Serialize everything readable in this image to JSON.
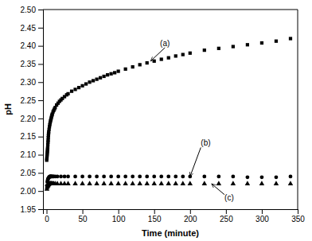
{
  "chart_data": {
    "type": "scatter",
    "xlabel": "Time (minute)",
    "ylabel": "pH",
    "xlim": [
      -5,
      350
    ],
    "ylim": [
      1.95,
      2.5
    ],
    "xticks": [
      0,
      50,
      100,
      150,
      200,
      250,
      300,
      350
    ],
    "yticks": [
      1.95,
      {
        "value": 2.0,
        "label": "2.00"
      },
      2.05,
      {
        "value": 2.1,
        "label": "2.10"
      },
      2.15,
      {
        "value": 2.2,
        "label": "2.20"
      },
      2.25,
      {
        "value": 2.3,
        "label": "2.30"
      },
      2.35,
      {
        "value": 2.4,
        "label": "2.40"
      },
      2.45,
      {
        "value": 2.5,
        "label": "2.50"
      }
    ],
    "series": [
      {
        "marker": "square",
        "color": "#000000",
        "x": [
          0.2,
          0.4,
          0.6,
          0.8,
          1.0,
          1.2,
          1.4,
          1.6,
          1.8,
          2.0,
          2.2,
          2.4,
          2.6,
          2.8,
          3.0,
          3.5,
          4.0,
          4.5,
          5.0,
          5.5,
          6.0,
          6.5,
          7.0,
          7.5,
          8.0,
          9.0,
          10.0,
          11.0,
          12.0,
          14.0,
          16.0,
          18.0,
          20.0,
          22.0,
          25.0,
          28.0,
          30.0,
          35.0,
          40.0,
          45.0,
          50.0,
          55.0,
          60.0,
          65.0,
          70.0,
          75.0,
          80.0,
          85.0,
          90.0,
          95.0,
          100.0,
          110.0,
          120.0,
          130.0,
          140.0,
          150.0,
          160.0,
          170.0,
          180.0,
          190.0,
          200.0,
          220.0,
          240.0,
          260.0,
          280.0,
          300.0,
          320.0,
          340.0
        ],
        "values": [
          2.085,
          2.09,
          2.095,
          2.1,
          2.105,
          2.11,
          2.115,
          2.12,
          2.128,
          2.135,
          2.14,
          2.147,
          2.153,
          2.158,
          2.163,
          2.17,
          2.177,
          2.183,
          2.188,
          2.193,
          2.197,
          2.201,
          2.205,
          2.209,
          2.212,
          2.218,
          2.222,
          2.226,
          2.23,
          2.237,
          2.242,
          2.247,
          2.251,
          2.255,
          2.26,
          2.265,
          2.268,
          2.275,
          2.28,
          2.285,
          2.29,
          2.295,
          2.3,
          2.304,
          2.308,
          2.312,
          2.316,
          2.32,
          2.323,
          2.326,
          2.33,
          2.336,
          2.342,
          2.348,
          2.353,
          2.358,
          2.363,
          2.367,
          2.372,
          2.376,
          2.38,
          2.388,
          2.393,
          2.398,
          2.403,
          2.408,
          2.413,
          2.42
        ]
      },
      {
        "marker": "circle",
        "color": "#000000",
        "x": [
          0.5,
          1,
          1.5,
          2,
          2.5,
          3,
          3.5,
          4,
          4.5,
          5,
          5.5,
          6,
          6.5,
          7,
          8,
          9,
          10,
          12,
          15,
          20,
          25,
          30,
          40,
          50,
          60,
          70,
          80,
          90,
          100,
          110,
          120,
          130,
          140,
          150,
          160,
          170,
          180,
          190,
          200,
          220,
          240,
          260,
          280,
          300,
          320,
          340
        ],
        "values": [
          2.015,
          2.025,
          2.03,
          2.033,
          2.035,
          2.037,
          2.038,
          2.039,
          2.04,
          2.04,
          2.04,
          2.04,
          2.04,
          2.04,
          2.04,
          2.04,
          2.04,
          2.04,
          2.04,
          2.04,
          2.04,
          2.04,
          2.04,
          2.04,
          2.04,
          2.04,
          2.04,
          2.04,
          2.04,
          2.04,
          2.04,
          2.04,
          2.04,
          2.04,
          2.04,
          2.04,
          2.04,
          2.04,
          2.04,
          2.04,
          2.04,
          2.04,
          2.038,
          2.038,
          2.038,
          2.04
        ]
      },
      {
        "marker": "triangle",
        "color": "#000000",
        "x": [
          0.5,
          1,
          1.5,
          2,
          2.5,
          3,
          3.5,
          4,
          4.5,
          5,
          5.5,
          6,
          6.5,
          7,
          8,
          9,
          10,
          12,
          15,
          20,
          25,
          30,
          40,
          50,
          60,
          70,
          80,
          90,
          100,
          110,
          120,
          130,
          140,
          150,
          160,
          170,
          180,
          190,
          200,
          220,
          240,
          260,
          280,
          300,
          320,
          340
        ],
        "values": [
          2.005,
          2.01,
          2.013,
          2.015,
          2.017,
          2.018,
          2.019,
          2.02,
          2.02,
          2.02,
          2.02,
          2.02,
          2.02,
          2.02,
          2.02,
          2.02,
          2.02,
          2.02,
          2.02,
          2.02,
          2.02,
          2.02,
          2.02,
          2.02,
          2.02,
          2.02,
          2.02,
          2.02,
          2.02,
          2.02,
          2.02,
          2.02,
          2.02,
          2.02,
          2.02,
          2.02,
          2.02,
          2.02,
          2.02,
          2.02,
          2.02,
          2.02,
          2.02,
          2.02,
          2.02,
          2.02
        ]
      }
    ],
    "annotations": [
      {
        "text": "(a)",
        "xy": [
          145,
          2.358
        ],
        "xytext": [
          165,
          2.395
        ]
      },
      {
        "text": "(b)",
        "xy": [
          200,
          2.04
        ],
        "xytext": [
          215,
          2.12
        ]
      },
      {
        "text": "(c)",
        "xy": [
          230,
          2.02
        ],
        "xytext": [
          248,
          1.99
        ]
      }
    ]
  }
}
